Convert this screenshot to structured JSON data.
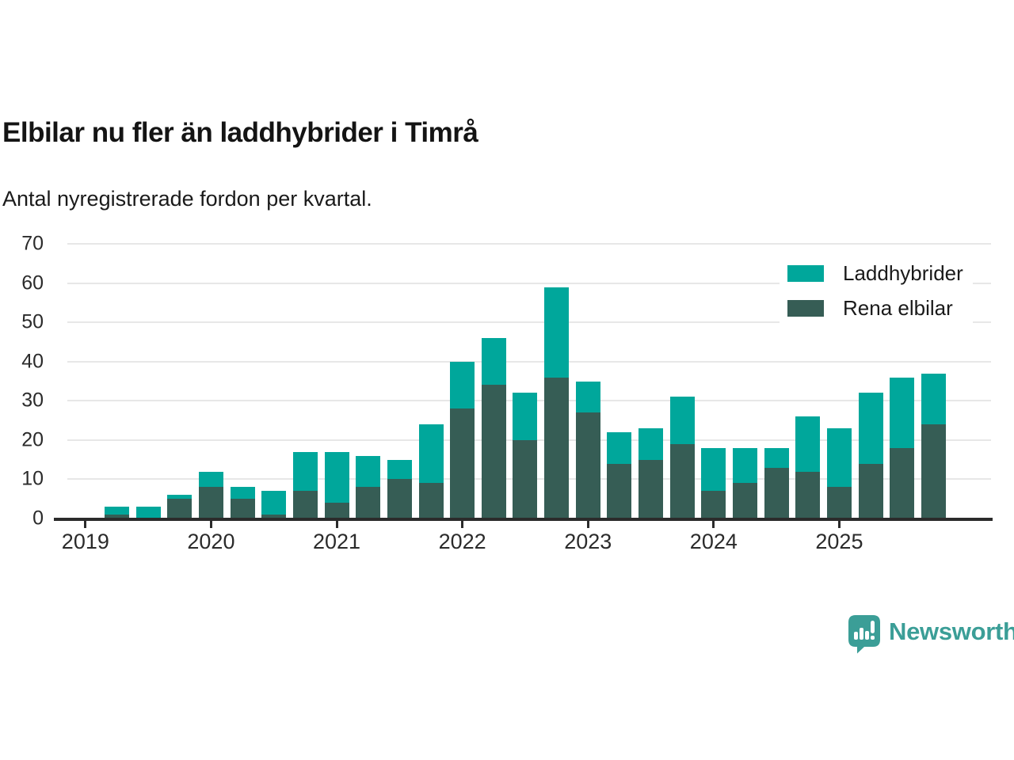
{
  "header": {
    "title": "Elbilar nu fler än laddhybrider i Timrå",
    "subtitle": "Antal nyregistrerade fordon per kvartal."
  },
  "legend": {
    "items": [
      {
        "label": "Laddhybrider",
        "color": "#00a79b"
      },
      {
        "label": "Rena elbilar",
        "color": "#365d55"
      }
    ]
  },
  "footer": {
    "brand": "Newsworthy",
    "brand_color": "#3b9e97"
  },
  "colors": {
    "laddhybrider": "#00a79b",
    "rena_elbilar": "#365d55",
    "grid": "#e7e7e7",
    "axis": "#2b2b2b"
  },
  "chart_data": {
    "type": "bar",
    "stacked": true,
    "title": "Elbilar nu fler än laddhybrider i Timrå",
    "subtitle": "Antal nyregistrerade fordon per kvartal.",
    "xlabel": "",
    "ylabel": "",
    "ylim": [
      0,
      70
    ],
    "yticks": [
      0,
      10,
      20,
      30,
      40,
      50,
      60,
      70
    ],
    "xticks": [
      "2019",
      "2020",
      "2021",
      "2022",
      "2023",
      "2024",
      "2025"
    ],
    "grid": true,
    "legend_position": "top-right",
    "categories": [
      "2019 Q1",
      "2019 Q2",
      "2019 Q3",
      "2019 Q4",
      "2020 Q1",
      "2020 Q2",
      "2020 Q3",
      "2020 Q4",
      "2021 Q1",
      "2021 Q2",
      "2021 Q3",
      "2021 Q4",
      "2022 Q1",
      "2022 Q2",
      "2022 Q3",
      "2022 Q4",
      "2023 Q1",
      "2023 Q2",
      "2023 Q3",
      "2023 Q4",
      "2024 Q1",
      "2024 Q2",
      "2024 Q3",
      "2024 Q4",
      "2025 Q1",
      "2025 Q2",
      "2025 Q3",
      "2025 Q4"
    ],
    "series": [
      {
        "name": "Rena elbilar",
        "color": "#365d55",
        "values": [
          0,
          1,
          0,
          5,
          8,
          5,
          1,
          7,
          4,
          8,
          10,
          9,
          28,
          34,
          20,
          36,
          27,
          14,
          15,
          19,
          7,
          9,
          13,
          12,
          8,
          14,
          18,
          24
        ]
      },
      {
        "name": "Laddhybrider",
        "color": "#00a79b",
        "values": [
          0,
          2,
          3,
          1,
          4,
          3,
          6,
          10,
          13,
          8,
          5,
          15,
          12,
          12,
          12,
          23,
          8,
          8,
          8,
          12,
          11,
          9,
          5,
          14,
          15,
          18,
          18,
          13
        ]
      }
    ],
    "totals": [
      0,
      3,
      3,
      6,
      12,
      8,
      7,
      17,
      17,
      16,
      15,
      24,
      40,
      46,
      32,
      59,
      35,
      22,
      23,
      31,
      18,
      18,
      18,
      26,
      23,
      32,
      36,
      37
    ]
  }
}
